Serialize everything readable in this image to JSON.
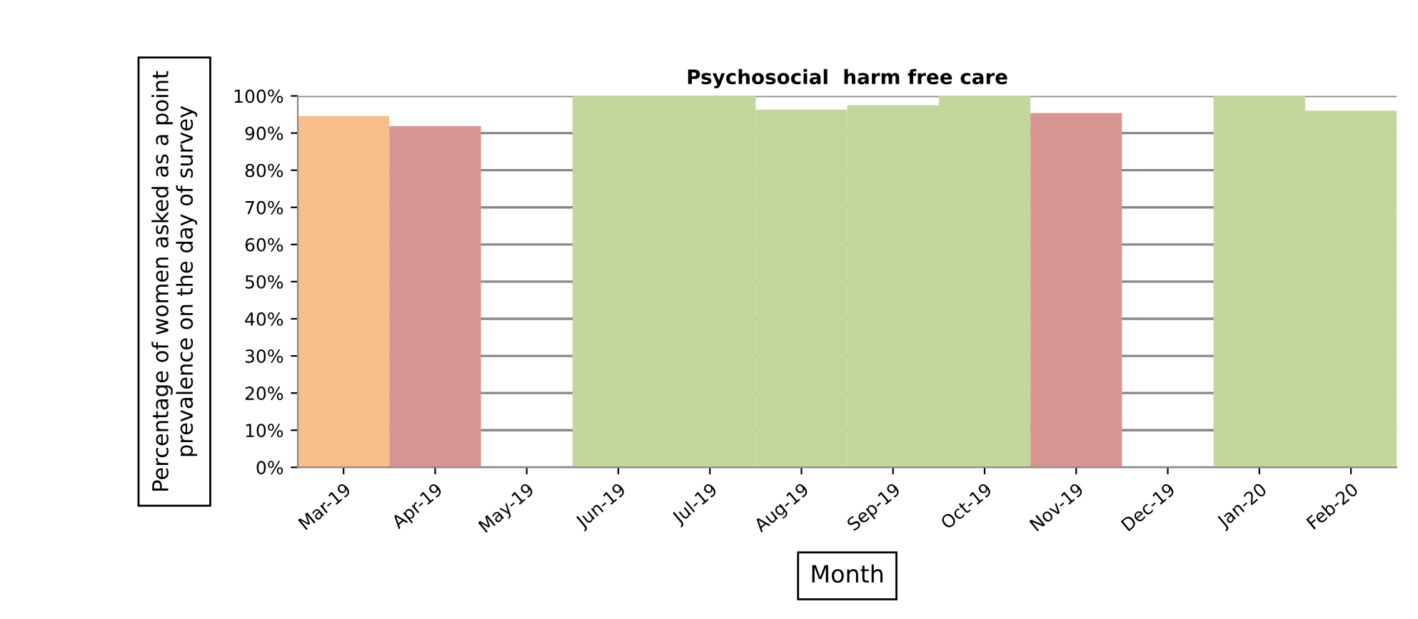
{
  "chart_data": {
    "type": "bar",
    "title": "Psychosocial  harm free care",
    "xlabel": "Month",
    "ylabel": "Percentage of women asked as a point\nprevalence on the day of survey",
    "categories": [
      "Mar-19",
      "Apr-19",
      "May-19",
      "Jun-19",
      "Jul-19",
      "Aug-19",
      "Sep-19",
      "Oct-19",
      "Nov-19",
      "Dec-19",
      "Jan-20",
      "Feb-20"
    ],
    "values": [
      94.6,
      91.9,
      null,
      100,
      100,
      96.3,
      97.5,
      100,
      95.4,
      null,
      100,
      96
    ],
    "colors": [
      "#f9bd8b",
      "#d99594",
      null,
      "#c3d69b",
      "#c3d69b",
      "#c3d69b",
      "#c3d69b",
      "#c3d69b",
      "#d99594",
      null,
      "#c3d69b",
      "#c3d69b"
    ],
    "ylim": [
      0,
      100
    ],
    "yticks": [
      {
        "value": 0,
        "label": "0%"
      },
      {
        "value": 10,
        "label": "10%"
      },
      {
        "value": 20,
        "label": "20%"
      },
      {
        "value": 30,
        "label": "30%"
      },
      {
        "value": 40,
        "label": "40%"
      },
      {
        "value": 50,
        "label": "50%"
      },
      {
        "value": 60,
        "label": "60%"
      },
      {
        "value": 70,
        "label": "70%"
      },
      {
        "value": 80,
        "label": "80%"
      },
      {
        "value": 90,
        "label": "90%"
      },
      {
        "value": 100,
        "label": "100%"
      }
    ],
    "grid": "y",
    "legend": false
  }
}
